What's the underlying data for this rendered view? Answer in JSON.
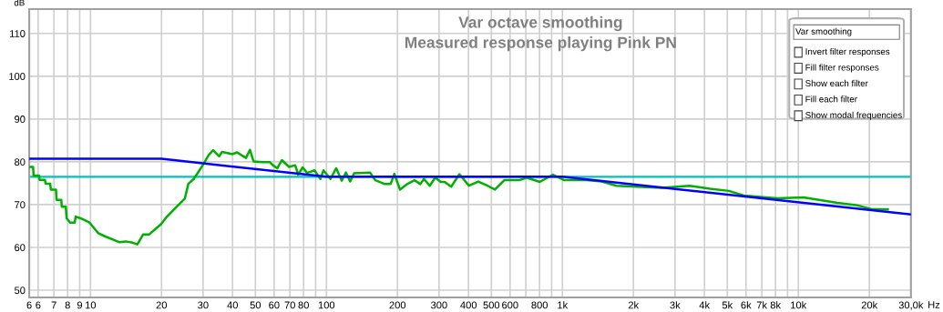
{
  "chart_data": {
    "type": "line",
    "title": "Var octave smoothing",
    "subtitle": "Measured response playing Pink PN",
    "ylabel": "dB",
    "log": "x",
    "grid": true,
    "legend": false,
    "marker": "none",
    "line_style": "solid",
    "xlim": [
      5.5,
      30000
    ],
    "ylim": [
      48.3,
      115.7
    ],
    "xticks": [
      {
        "value": 5.5,
        "label": "6"
      },
      6,
      7,
      8,
      9,
      10,
      20,
      30,
      40,
      50,
      60,
      70,
      80,
      {
        "value": 90,
        "label": null
      },
      100,
      200,
      300,
      400,
      500,
      600,
      {
        "value": 700,
        "label": null
      },
      800,
      {
        "value": 900,
        "label": null
      },
      {
        "value": 1000,
        "label": "1k"
      },
      {
        "value": 2000,
        "label": "2k"
      },
      {
        "value": 3000,
        "label": "3k"
      },
      {
        "value": 4000,
        "label": "4k"
      },
      {
        "value": 5000,
        "label": "5k"
      },
      {
        "value": 6000,
        "label": "6k"
      },
      {
        "value": 7000,
        "label": "7k"
      },
      {
        "value": 8000,
        "label": "8k"
      },
      {
        "value": 9000,
        "label": null
      },
      {
        "value": 10000,
        "label": "10k"
      },
      {
        "value": 20000,
        "label": "20k"
      },
      {
        "value": 30000,
        "label": "30,0k"
      }
    ],
    "xlabel": "Hz",
    "yticks": [
      50,
      60,
      70,
      80,
      90,
      100,
      110
    ],
    "series": [
      {
        "color": "#00b000",
        "x": [
          5.54,
          5.71,
          5.74,
          6.05,
          6.08,
          6.41,
          6.45,
          6.75,
          6.79,
          7.14,
          7.18,
          7.52,
          7.56,
          7.86,
          7.92,
          8.2,
          8.57,
          8.65,
          9.08,
          9.91,
          10.8,
          11.5,
          13.3,
          14.1,
          15.1,
          15.8,
          16.7,
          17.7,
          19.9,
          21.1,
          23.0,
          25.1,
          26.0,
          27.4,
          29.9,
          31.7,
          33.1,
          35.1,
          36.1,
          40.0,
          41.8,
          45.6,
          47.4,
          49.1,
          53.5,
          57.6,
          59.3,
          61.9,
          64.7,
          69.5,
          73.7,
          75.9,
          79.3,
          82.8,
          89.0,
          94.3,
          97.1,
          104,
          110,
          116,
          121,
          126,
          131,
          153,
          161,
          177,
          187,
          194,
          205,
          220,
          236,
          250,
          259,
          274,
          289,
          305,
          317,
          338,
          366,
          402,
          440,
          482,
          518,
          567,
          656,
          706,
          802,
          912,
          1018,
          1266,
          1466,
          1697,
          2271,
          2628,
          3458,
          4227,
          5071,
          5874,
          8150,
          10520,
          14620,
          17540,
          20280,
          23930
        ],
        "values": [
          78.8,
          78.8,
          76.8,
          76.8,
          75.8,
          75.8,
          74.9,
          74.9,
          73.5,
          73.5,
          71.1,
          71.1,
          69.5,
          69.5,
          66.8,
          65.8,
          65.8,
          67.2,
          66.8,
          65.8,
          63.3,
          62.6,
          61.2,
          61.4,
          61.1,
          60.7,
          63.0,
          63.0,
          65.4,
          67.2,
          69.3,
          71.4,
          74.9,
          76.0,
          79.2,
          81.6,
          82.7,
          81.3,
          82.3,
          81.8,
          82.2,
          80.9,
          82.8,
          80.1,
          79.9,
          79.9,
          79.2,
          78.5,
          80.4,
          78.8,
          79.2,
          77.0,
          78.7,
          77.4,
          78.0,
          76.0,
          78.0,
          76.0,
          78.5,
          75.6,
          77.5,
          75.4,
          77.3,
          77.5,
          75.7,
          74.8,
          74.8,
          77.2,
          73.5,
          74.8,
          75.7,
          74.8,
          76.0,
          74.4,
          76.3,
          75.3,
          75.3,
          74.2,
          77.1,
          74.4,
          75.4,
          74.4,
          73.5,
          75.7,
          75.7,
          76.3,
          75.3,
          77.0,
          75.7,
          75.7,
          75.4,
          74.4,
          74.1,
          73.9,
          74.4,
          73.7,
          73.2,
          72.1,
          71.5,
          71.7,
          70.4,
          69.9,
          69.0,
          68.9
        ]
      },
      {
        "color": "#0000ff",
        "x": [
          5.5,
          20,
          100,
          1000,
          30000
        ],
        "values": [
          80.7,
          80.7,
          76.5,
          76.5,
          67.7
        ]
      }
    ],
    "ref_lines": [
      {
        "axis": "y",
        "value": 76.5,
        "color": "#00c0c0",
        "line_style": "solid"
      }
    ],
    "annotations": [
      "Var smoothing",
      "Invert filter responses",
      "Fill filter responses",
      "Show each filter",
      "Fill each filter",
      "Show modal frequencies"
    ]
  }
}
